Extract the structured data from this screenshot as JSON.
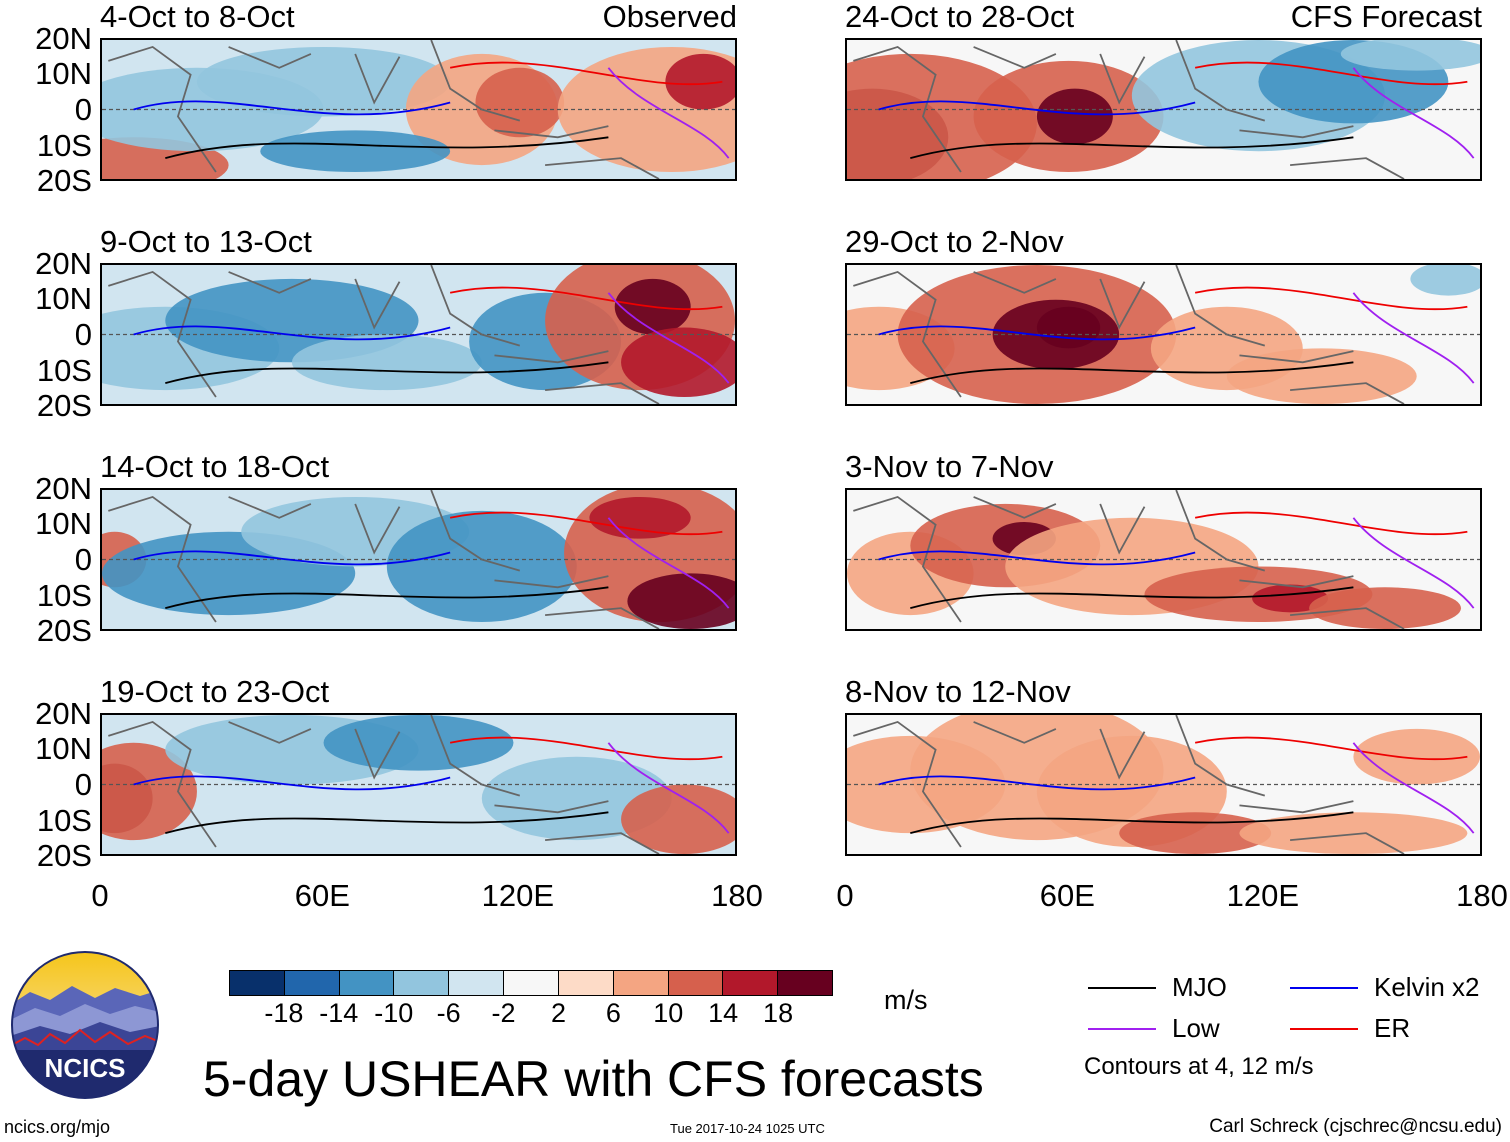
{
  "panels": [
    {
      "title": "4-Oct to 8-Oct",
      "tag": "Observed"
    },
    {
      "title": "9-Oct to 13-Oct",
      "tag": ""
    },
    {
      "title": "14-Oct to 18-Oct",
      "tag": ""
    },
    {
      "title": "19-Oct to 23-Oct",
      "tag": ""
    },
    {
      "title": "24-Oct to 28-Oct",
      "tag": "CFS Forecast"
    },
    {
      "title": "29-Oct to 2-Nov",
      "tag": ""
    },
    {
      "title": "3-Nov to 7-Nov",
      "tag": ""
    },
    {
      "title": "8-Nov to 12-Nov",
      "tag": ""
    }
  ],
  "lat_labels": [
    "20N",
    "10N",
    "0",
    "10S",
    "20S"
  ],
  "lon_labels": [
    "0",
    "60E",
    "120E",
    "180"
  ],
  "colorbar": {
    "colors": [
      "#08306b",
      "#2166ac",
      "#4393c3",
      "#92c5de",
      "#d1e5f0",
      "#f7f7f7",
      "#fddbc7",
      "#f4a582",
      "#d6604d",
      "#b2182b",
      "#67001f"
    ],
    "ticks": [
      "-18",
      "-14",
      "-10",
      "-6",
      "-2",
      "2",
      "6",
      "10",
      "14",
      "18"
    ],
    "units": "m/s"
  },
  "legend": {
    "items": [
      {
        "label": "MJO",
        "color": "#000000"
      },
      {
        "label": "Kelvin x2",
        "color": "#0000ee"
      },
      {
        "label": "Low",
        "color": "#a020f0"
      },
      {
        "label": "ER",
        "color": "#ee0000"
      }
    ],
    "note": "Contours at 4, 12 m/s"
  },
  "logo_text": "NCICS",
  "main_title": "5-day USHEAR with CFS forecasts",
  "footer": {
    "left": "ncics.org/mjo",
    "center": "Tue 2017-10-24 1025 UTC",
    "right": "Carl Schreck (cjschrec@ncsu.edu)"
  }
}
